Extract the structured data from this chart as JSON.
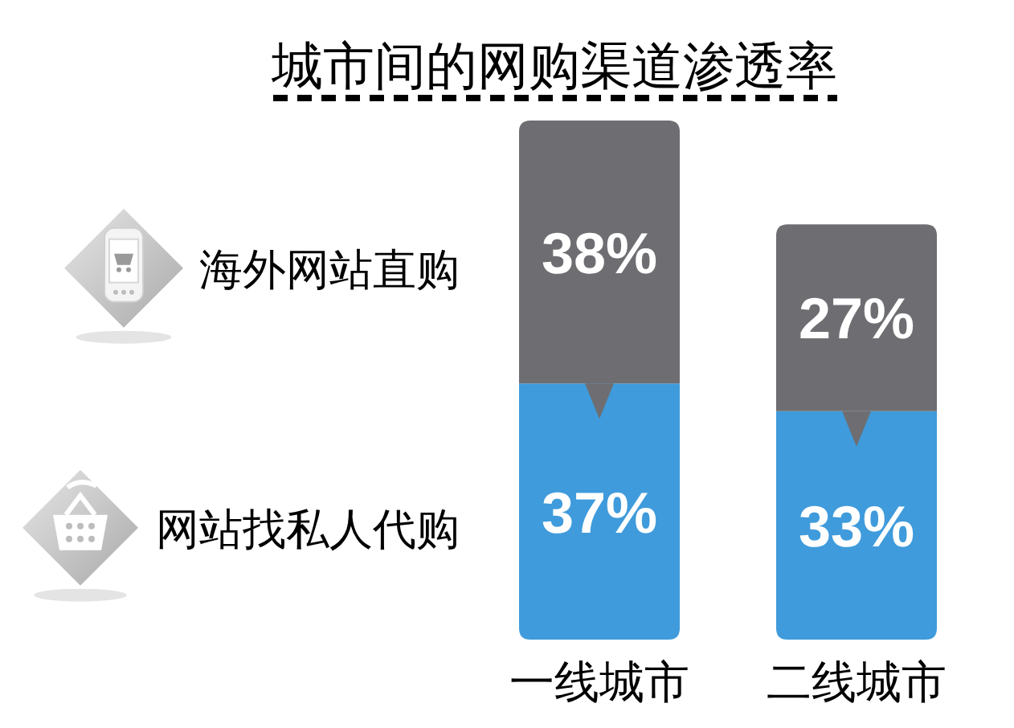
{
  "chart_data": {
    "type": "bar",
    "stacked": true,
    "title": "城市间的网购渠道渗透率",
    "categories": [
      "一线城市",
      "二线城市"
    ],
    "series": [
      {
        "name": "网站找私人代购",
        "color": "#3f9bdb",
        "values": [
          37,
          33
        ],
        "value_labels": [
          "37%",
          "33%"
        ]
      },
      {
        "name": "海外网站直购",
        "color": "#6e6e72",
        "values": [
          38,
          27
        ],
        "value_labels": [
          "38%",
          "27%"
        ]
      }
    ],
    "legend": "left"
  }
}
